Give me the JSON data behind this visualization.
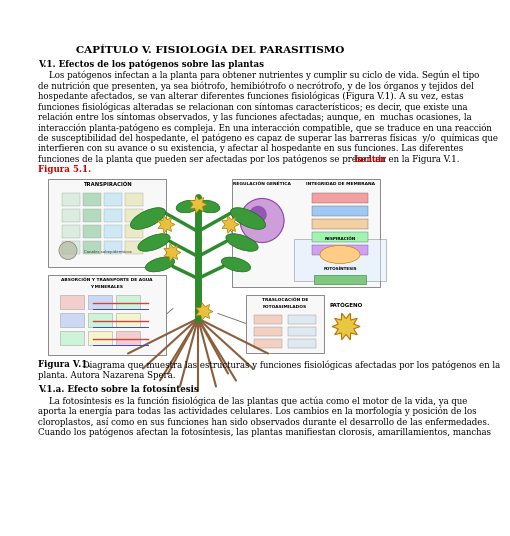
{
  "title": "CAPÍTULO V. FISIOLOGÍA DEL PARASITISMO",
  "section_title": "V.1. Efectos de los patógenos sobre las plantas",
  "para1_lines": [
    "    Los patógenos infectan a la planta para obtener nutrientes y cumplir su ciclo de vida. Según el tipo",
    "de nutrición que presenten, ya sea biótrofo, hemibiótrofo o necrótrofo, y de los órganos y tejidos del",
    "hospedante afectados, se van alterar diferentes funciones fisiológicas (Figura V.1). A su vez, estas",
    "funciones fisiológicas alteradas se relacionan con síntomas característicos; es decir, que existe una",
    "relación entre los síntomas observados, y las funciones afectadas; aunque, en  muchas ocasiones, la",
    "interacción planta-patógeno es compleja. En una interacción compatible, que se traduce en una reacción",
    "de susceptibilidad del hospedante, el patógeno es capaz de superar las barreras físicas  y/o  químicas que",
    "interfieren con su avance o su existencia, y afectar al hospedante en sus funciones. Las diferentes",
    "funciones de la planta que pueden ser afectadas por los patógenos se presentan en la Figura V.1."
  ],
  "red_text": "Incluir",
  "red_text2": "Figura 5.1.",
  "figure_caption_bold": "Figura V.1.",
  "figure_caption_normal": " Diagrama que muestra las estructuras y funciones fisiológicas afectadas por los patógenos en la",
  "figure_caption_line2": "planta. Autora Nazarena Spera.",
  "subsection_title": "V.1.a. Efecto sobre la fotosíntesis",
  "para2_lines": [
    "    La fotosíntesis es la función fisiológica de las plantas que actúa como el motor de la vida, ya que",
    "aporta la energía para todas las actividades celulares. Los cambios en la morfología y posición de los",
    "cloroplastos, así como en sus funciones han sido observados durante el desarrollo de las enfermedades.",
    "Cuando los patógenos afectan la fotosíntesis, las plantas manifiestan clorosis, amarillamientos, manchas"
  ],
  "bg": "#ffffff",
  "black": "#000000",
  "red": "#cc0000",
  "gray_box": "#f0f0f0",
  "box_edge": "#888888"
}
